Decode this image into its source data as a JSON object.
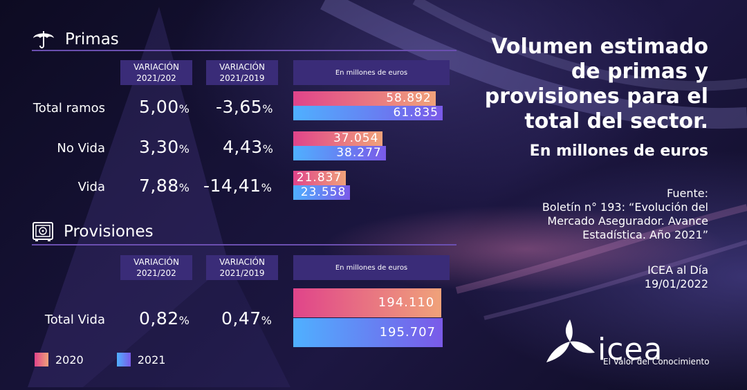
{
  "title": {
    "main": "Volumen estimado de primas y provisiones para el total del sector.",
    "subtitle": "En millones de euros"
  },
  "source": {
    "label": "Fuente:",
    "line1": "Boletín n° 193: “Evolución del",
    "line2": "Mercado Asegurador. Avance",
    "line3": "Estadística. Año 2021”",
    "publication": "ICEA al Día",
    "date": "19/01/2022"
  },
  "logo": {
    "word": "icea",
    "tagline": "El Valor del Conocimiento"
  },
  "icons": {
    "primas": "umbrella-icon",
    "provisiones": "safe-icon"
  },
  "colors": {
    "bar_2020_start": "#e0448a",
    "bar_2020_end": "#f0a27a",
    "bar_2021_start": "#4fb0ff",
    "bar_2021_end": "#7a5ae8",
    "header_bg": "#3a2c78"
  },
  "primas": {
    "title": "Primas",
    "col1_line1": "VARIACIÓN",
    "col1_line2": "2021/202",
    "col2_line1": "VARIACIÓN",
    "col2_line2": "2021/2019",
    "unit": "En millones de euros",
    "rows": [
      {
        "label": "Total ramos",
        "var_2021_2020": "5,00",
        "var_2021_2019": "-3,65",
        "v2020": "58.892",
        "v2021": "61.835"
      },
      {
        "label": "No Vida",
        "var_2021_2020": "3,30",
        "var_2021_2019": "4,43",
        "v2020": "37.054",
        "v2021": "38.277"
      },
      {
        "label": "Vida",
        "var_2021_2020": "7,88",
        "var_2021_2019": "-14,41",
        "v2020": "21.837",
        "v2021": "23.558"
      }
    ]
  },
  "provisiones": {
    "title": "Provisiones",
    "col1_line1": "VARIACIÓN",
    "col1_line2": "2021/202",
    "col2_line1": "VARIACIÓN",
    "col2_line2": "2021/2019",
    "unit": "En millones de euros",
    "rows": [
      {
        "label": "Total Vida",
        "var_2021_2020": "0,82",
        "var_2021_2019": "0,47",
        "v2020": "194.110",
        "v2021": "195.707"
      }
    ]
  },
  "pct_symbol": "%",
  "legend": [
    {
      "label": "2020"
    },
    {
      "label": "2021"
    }
  ],
  "chart_data": [
    {
      "type": "bar",
      "title": "Primas",
      "categories": [
        "Total ramos",
        "No Vida",
        "Vida"
      ],
      "series": [
        {
          "name": "2020",
          "values": [
            58892,
            37054,
            21837
          ]
        },
        {
          "name": "2021",
          "values": [
            61835,
            38277,
            23558
          ]
        }
      ],
      "ylabel": "En millones de euros",
      "orientation": "horizontal",
      "legend_placement": "bottom-left"
    },
    {
      "type": "bar",
      "title": "Provisiones",
      "categories": [
        "Total Vida"
      ],
      "series": [
        {
          "name": "2020",
          "values": [
            194110
          ]
        },
        {
          "name": "2021",
          "values": [
            195707
          ]
        }
      ],
      "ylabel": "En millones de euros",
      "orientation": "horizontal",
      "legend_placement": "bottom-left"
    }
  ]
}
